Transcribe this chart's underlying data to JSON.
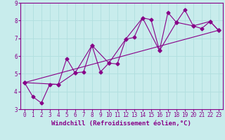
{
  "title": "",
  "xlabel": "Windchill (Refroidissement éolien,°C)",
  "ylabel": "",
  "background_color": "#c8ecec",
  "grid_color": "#b0dede",
  "line_color": "#880088",
  "xlim": [
    -0.5,
    23.5
  ],
  "ylim": [
    3,
    9
  ],
  "xticks": [
    0,
    1,
    2,
    3,
    4,
    5,
    6,
    7,
    8,
    9,
    10,
    11,
    12,
    13,
    14,
    15,
    16,
    17,
    18,
    19,
    20,
    21,
    22,
    23
  ],
  "yticks": [
    3,
    4,
    5,
    6,
    7,
    8,
    9
  ],
  "series1_x": [
    0,
    1,
    2,
    3,
    4,
    5,
    6,
    7,
    8,
    9,
    10,
    11,
    12,
    13,
    14,
    15,
    16,
    17,
    18,
    19,
    20,
    21,
    22,
    23
  ],
  "series1_y": [
    4.5,
    3.7,
    3.35,
    4.4,
    4.4,
    5.85,
    5.05,
    5.1,
    6.6,
    5.1,
    5.6,
    5.55,
    6.95,
    7.05,
    8.15,
    8.05,
    6.3,
    8.45,
    7.9,
    8.6,
    7.7,
    7.55,
    7.95,
    7.45
  ],
  "series2_x": [
    0,
    4,
    6,
    8,
    10,
    12,
    14,
    16,
    18,
    20,
    22,
    23
  ],
  "series2_y": [
    4.5,
    4.4,
    5.05,
    6.6,
    5.6,
    6.95,
    8.15,
    6.3,
    7.9,
    7.7,
    7.95,
    7.45
  ],
  "series3_x": [
    0,
    23
  ],
  "series3_y": [
    4.5,
    7.45
  ],
  "marker": "D",
  "markersize": 2.5,
  "linewidth": 0.8,
  "tick_fontsize": 5.5,
  "xlabel_fontsize": 6.5
}
